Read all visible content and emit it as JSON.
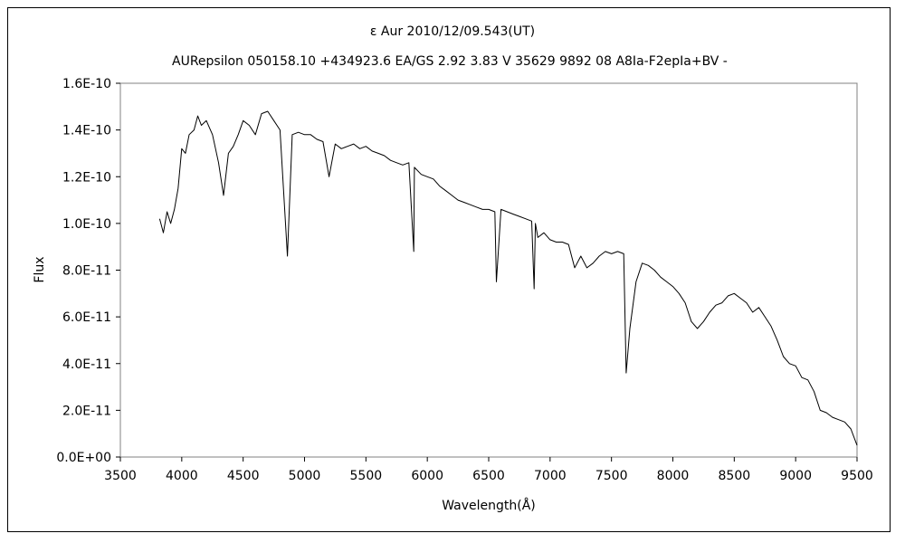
{
  "chart_data": {
    "type": "line",
    "title": "ε Aur 2010/12/09.543(UT)",
    "subtitle": "AURepsilon 050158.10 +434923.6 EA/GS 2.92 3.83 V 35629 9892 08 A8Ia-F2epIa+BV -",
    "xlabel": "Wavelength(Å)",
    "ylabel": "Flux",
    "xlim": [
      3500,
      9500
    ],
    "ylim": [
      0,
      1.6e-10
    ],
    "xticks": [
      "3500",
      "4000",
      "4500",
      "5000",
      "5500",
      "6000",
      "6500",
      "7000",
      "7500",
      "8000",
      "8500",
      "9000",
      "9500"
    ],
    "yticks": [
      "0.0E+00",
      "2.0E-11",
      "4.0E-11",
      "6.0E-11",
      "8.0E-11",
      "1.0E-10",
      "1.2E-10",
      "1.4E-10",
      "1.6E-10"
    ],
    "grid": false,
    "legend": "none",
    "series": [
      {
        "color": "#000000",
        "x": [
          3820,
          3850,
          3880,
          3910,
          3940,
          3970,
          4000,
          4030,
          4060,
          4100,
          4130,
          4160,
          4200,
          4250,
          4300,
          4340,
          4380,
          4420,
          4460,
          4500,
          4550,
          4600,
          4650,
          4700,
          4750,
          4800,
          4861,
          4900,
          4950,
          5000,
          5050,
          5100,
          5150,
          5200,
          5250,
          5300,
          5350,
          5400,
          5450,
          5500,
          5550,
          5600,
          5650,
          5700,
          5750,
          5800,
          5850,
          5890,
          5895,
          5950,
          6000,
          6050,
          6100,
          6150,
          6200,
          6250,
          6300,
          6350,
          6400,
          6450,
          6500,
          6550,
          6563,
          6600,
          6650,
          6700,
          6750,
          6800,
          6850,
          6870,
          6880,
          6900,
          6950,
          7000,
          7050,
          7100,
          7150,
          7200,
          7250,
          7300,
          7350,
          7400,
          7450,
          7500,
          7550,
          7600,
          7620,
          7650,
          7700,
          7750,
          7800,
          7850,
          7900,
          7950,
          8000,
          8050,
          8100,
          8150,
          8200,
          8250,
          8300,
          8350,
          8400,
          8450,
          8500,
          8550,
          8600,
          8650,
          8700,
          8750,
          8800,
          8850,
          8900,
          8950,
          9000,
          9050,
          9100,
          9150,
          9200,
          9250,
          9300,
          9350,
          9400,
          9450,
          9500
        ],
        "values": [
          1.02e-10,
          9.6e-11,
          1.05e-10,
          1e-10,
          1.06e-10,
          1.15e-10,
          1.32e-10,
          1.3e-10,
          1.38e-10,
          1.4e-10,
          1.46e-10,
          1.42e-10,
          1.44e-10,
          1.38e-10,
          1.26e-10,
          1.12e-10,
          1.3e-10,
          1.33e-10,
          1.38e-10,
          1.44e-10,
          1.42e-10,
          1.38e-10,
          1.47e-10,
          1.48e-10,
          1.44e-10,
          1.4e-10,
          8.6e-11,
          1.38e-10,
          1.39e-10,
          1.38e-10,
          1.38e-10,
          1.36e-10,
          1.35e-10,
          1.2e-10,
          1.34e-10,
          1.32e-10,
          1.33e-10,
          1.34e-10,
          1.32e-10,
          1.33e-10,
          1.31e-10,
          1.3e-10,
          1.29e-10,
          1.27e-10,
          1.26e-10,
          1.25e-10,
          1.26e-10,
          8.8e-11,
          1.24e-10,
          1.21e-10,
          1.2e-10,
          1.19e-10,
          1.16e-10,
          1.14e-10,
          1.12e-10,
          1.1e-10,
          1.09e-10,
          1.08e-10,
          1.07e-10,
          1.06e-10,
          1.06e-10,
          1.05e-10,
          7.5e-11,
          1.06e-10,
          1.05e-10,
          1.04e-10,
          1.03e-10,
          1.02e-10,
          1.01e-10,
          7.2e-11,
          1e-10,
          9.4e-11,
          9.6e-11,
          9.3e-11,
          9.2e-11,
          9.2e-11,
          9.1e-11,
          8.1e-11,
          8.6e-11,
          8.1e-11,
          8.3e-11,
          8.6e-11,
          8.8e-11,
          8.7e-11,
          8.8e-11,
          8.7e-11,
          3.6e-11,
          5.5e-11,
          7.5e-11,
          8.3e-11,
          8.2e-11,
          8e-11,
          7.7e-11,
          7.5e-11,
          7.3e-11,
          7e-11,
          6.6e-11,
          5.8e-11,
          5.5e-11,
          5.8e-11,
          6.2e-11,
          6.5e-11,
          6.6e-11,
          6.9e-11,
          7e-11,
          6.8e-11,
          6.6e-11,
          6.2e-11,
          6.4e-11,
          6e-11,
          5.6e-11,
          5e-11,
          4.3e-11,
          4e-11,
          3.9e-11,
          3.4e-11,
          3.3e-11,
          2.8e-11,
          2e-11,
          1.9e-11,
          1.7e-11,
          1.6e-11,
          1.5e-11,
          1.2e-11,
          5e-12
        ]
      }
    ]
  }
}
